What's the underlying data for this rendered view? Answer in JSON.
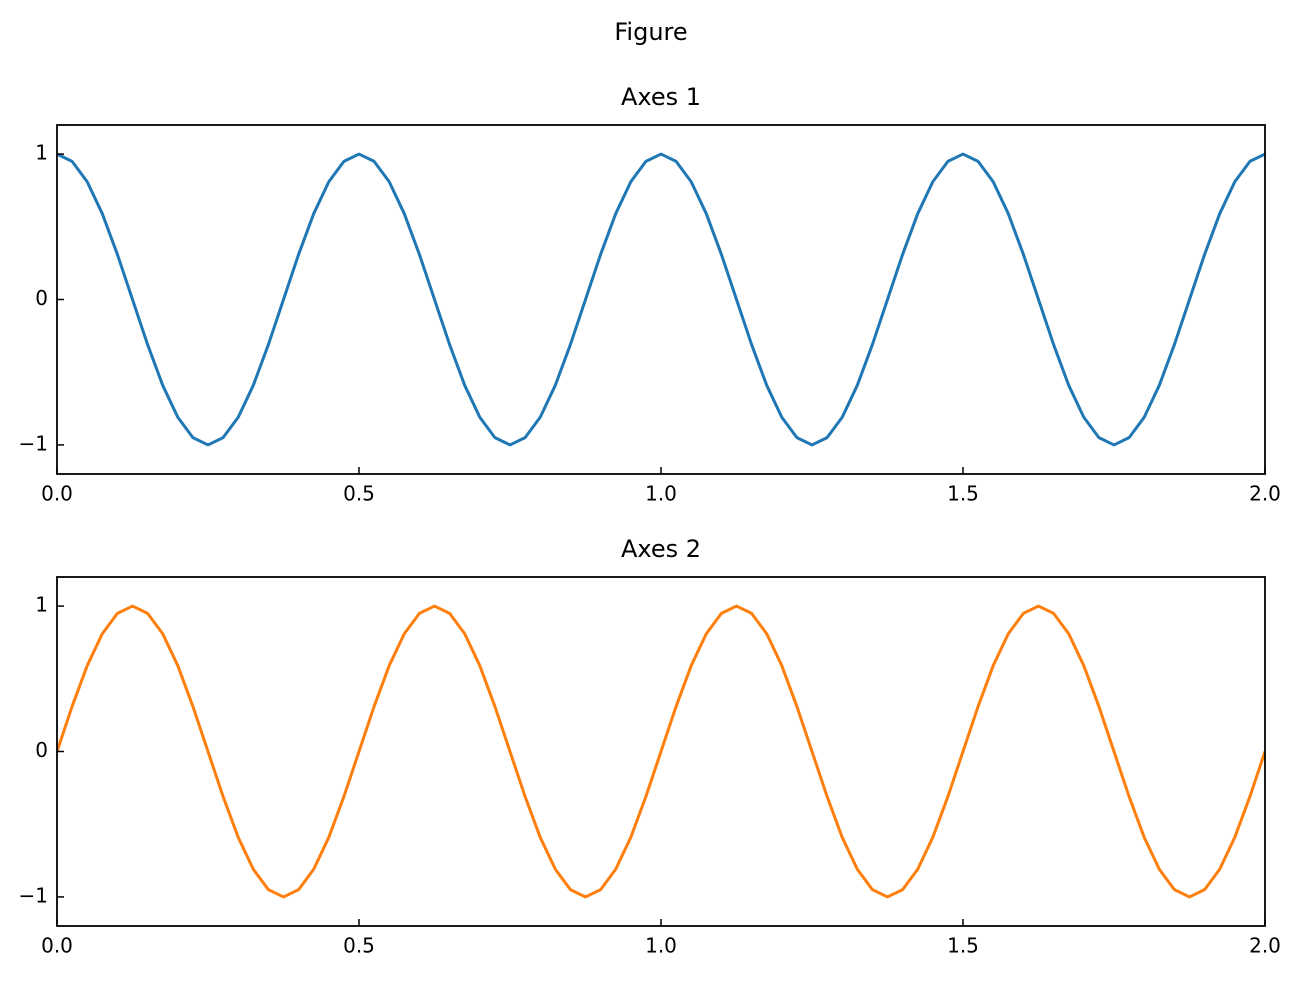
{
  "title": "Figure",
  "chart_data": [
    {
      "type": "line",
      "title": "Axes 1",
      "x": [
        0,
        0.025,
        0.05,
        0.075,
        0.1,
        0.125,
        0.15,
        0.175,
        0.2,
        0.225,
        0.25,
        0.275,
        0.3,
        0.325,
        0.35,
        0.375,
        0.4,
        0.425,
        0.45,
        0.475,
        0.5,
        0.525,
        0.55,
        0.575,
        0.6,
        0.625,
        0.65,
        0.675,
        0.7,
        0.725,
        0.75,
        0.775,
        0.8,
        0.825,
        0.85,
        0.875,
        0.9,
        0.925,
        0.95,
        0.975,
        1,
        1.025,
        1.05,
        1.075,
        1.1,
        1.125,
        1.15,
        1.175,
        1.2,
        1.225,
        1.25,
        1.275,
        1.3,
        1.325,
        1.35,
        1.375,
        1.4,
        1.425,
        1.45,
        1.475,
        1.5,
        1.525,
        1.55,
        1.575,
        1.6,
        1.625,
        1.65,
        1.675,
        1.7,
        1.725,
        1.75,
        1.775,
        1.8,
        1.825,
        1.85,
        1.875,
        1.9,
        1.925,
        1.95,
        1.975,
        2
      ],
      "series": [
        {
          "color": "#1f77b4",
          "values": [
            1,
            0.95,
            0.81,
            0.59,
            0.31,
            0,
            -0.31,
            -0.59,
            -0.81,
            -0.95,
            -1,
            -0.95,
            -0.81,
            -0.59,
            -0.31,
            0,
            0.31,
            0.59,
            0.81,
            0.95,
            1,
            0.95,
            0.81,
            0.59,
            0.31,
            0,
            -0.31,
            -0.59,
            -0.81,
            -0.95,
            -1,
            -0.95,
            -0.81,
            -0.59,
            -0.31,
            0,
            0.31,
            0.59,
            0.81,
            0.95,
            1,
            0.95,
            0.81,
            0.59,
            0.31,
            0,
            -0.31,
            -0.59,
            -0.81,
            -0.95,
            -1,
            -0.95,
            -0.81,
            -0.59,
            -0.31,
            0,
            0.31,
            0.59,
            0.81,
            0.95,
            1,
            0.95,
            0.81,
            0.59,
            0.31,
            0,
            -0.31,
            -0.59,
            -0.81,
            -0.95,
            -1,
            -0.95,
            -0.81,
            -0.59,
            -0.31,
            0,
            0.31,
            0.59,
            0.81,
            0.95,
            1
          ]
        }
      ],
      "xlim": [
        0,
        2
      ],
      "xticks": [
        {
          "value": 0,
          "label": "0.0"
        },
        0.5,
        {
          "value": 1,
          "label": "1.0"
        },
        1.5,
        {
          "value": 2,
          "label": "2.0"
        }
      ],
      "ylim": [
        -1.2,
        1.2
      ],
      "yticks": [
        {
          "value": -1,
          "label": "−1"
        },
        0,
        1
      ]
    },
    {
      "type": "line",
      "title": "Axes 2",
      "x": [
        0,
        0.025,
        0.05,
        0.075,
        0.1,
        0.125,
        0.15,
        0.175,
        0.2,
        0.225,
        0.25,
        0.275,
        0.3,
        0.325,
        0.35,
        0.375,
        0.4,
        0.425,
        0.45,
        0.475,
        0.5,
        0.525,
        0.55,
        0.575,
        0.6,
        0.625,
        0.65,
        0.675,
        0.7,
        0.725,
        0.75,
        0.775,
        0.8,
        0.825,
        0.85,
        0.875,
        0.9,
        0.925,
        0.95,
        0.975,
        1,
        1.025,
        1.05,
        1.075,
        1.1,
        1.125,
        1.15,
        1.175,
        1.2,
        1.225,
        1.25,
        1.275,
        1.3,
        1.325,
        1.35,
        1.375,
        1.4,
        1.425,
        1.45,
        1.475,
        1.5,
        1.525,
        1.55,
        1.575,
        1.6,
        1.625,
        1.65,
        1.675,
        1.7,
        1.725,
        1.75,
        1.775,
        1.8,
        1.825,
        1.85,
        1.875,
        1.9,
        1.925,
        1.95,
        1.975,
        2
      ],
      "series": [
        {
          "color": "#ff7f0e",
          "values": [
            0,
            0.31,
            0.59,
            0.81,
            0.95,
            1,
            0.95,
            0.81,
            0.59,
            0.31,
            0,
            -0.31,
            -0.59,
            -0.81,
            -0.95,
            -1,
            -0.95,
            -0.81,
            -0.59,
            -0.31,
            0,
            0.31,
            0.59,
            0.81,
            0.95,
            1,
            0.95,
            0.81,
            0.59,
            0.31,
            0,
            -0.31,
            -0.59,
            -0.81,
            -0.95,
            -1,
            -0.95,
            -0.81,
            -0.59,
            -0.31,
            0,
            0.31,
            0.59,
            0.81,
            0.95,
            1,
            0.95,
            0.81,
            0.59,
            0.31,
            0,
            -0.31,
            -0.59,
            -0.81,
            -0.95,
            -1,
            -0.95,
            -0.81,
            -0.59,
            -0.31,
            0,
            0.31,
            0.59,
            0.81,
            0.95,
            1,
            0.95,
            0.81,
            0.59,
            0.31,
            0,
            -0.31,
            -0.59,
            -0.81,
            -0.95,
            -1,
            -0.95,
            -0.81,
            -0.59,
            -0.31,
            0
          ]
        }
      ],
      "xlim": [
        0,
        2
      ],
      "xticks": [
        {
          "value": 0,
          "label": "0.0"
        },
        0.5,
        {
          "value": 1,
          "label": "1.0"
        },
        1.5,
        {
          "value": 2,
          "label": "2.0"
        }
      ],
      "ylim": [
        -1.2,
        1.2
      ],
      "yticks": [
        {
          "value": -1,
          "label": "−1"
        },
        0,
        1
      ]
    }
  ]
}
